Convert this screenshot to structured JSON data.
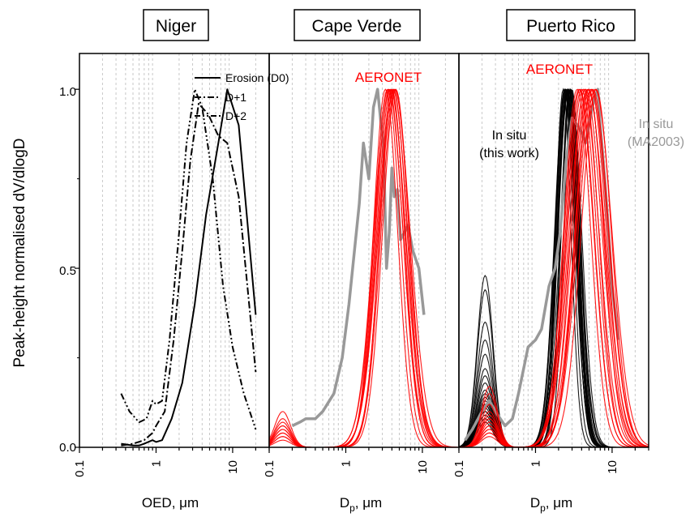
{
  "figure": {
    "ylabel": "Peak-height normalised dV/dlogD",
    "ytick_labels": [
      "0.0",
      "0.5",
      "1.0"
    ],
    "xtick_labels": [
      "0.1",
      "1",
      "10"
    ]
  },
  "colors": {
    "black": "#000000",
    "red": "#ff0000",
    "gray": "#999999",
    "grid": "#c8c8c8"
  },
  "chart_data": [
    {
      "type": "line",
      "title": "Niger",
      "xlabel": "OED, μm",
      "xscale": "log",
      "xlim": [
        0.1,
        30
      ],
      "ylim": [
        0,
        1.1
      ],
      "grid": "vertical dotted",
      "legend": {
        "placement": "top-left",
        "entries": [
          "Erosion (D0)",
          "D+1",
          "D+2"
        ]
      },
      "series": [
        {
          "name": "Erosion (D0)",
          "style": "solid",
          "color": "#000000",
          "x": [
            0.35,
            0.5,
            0.6,
            0.7,
            0.9,
            1.0,
            1.2,
            1.6,
            2.2,
            3.2,
            4.5,
            6.5,
            8.5,
            12.0,
            20.0
          ],
          "y": [
            0.01,
            0.005,
            0.005,
            0.01,
            0.02,
            0.015,
            0.02,
            0.08,
            0.18,
            0.4,
            0.65,
            0.85,
            1.0,
            0.9,
            0.37
          ]
        },
        {
          "name": "D+1",
          "style": "dashdot",
          "color": "#000000",
          "x": [
            0.35,
            0.5,
            0.7,
            0.9,
            1.0,
            1.3,
            1.7,
            2.2,
            2.8,
            3.6,
            4.8,
            6.5,
            8.5,
            12.0,
            20.0
          ],
          "y": [
            0.005,
            0.01,
            0.02,
            0.04,
            0.06,
            0.1,
            0.3,
            0.55,
            0.8,
            0.96,
            0.93,
            0.87,
            0.85,
            0.7,
            0.21
          ]
        },
        {
          "name": "D+2",
          "style": "dashdotdot",
          "color": "#000000",
          "x": [
            0.35,
            0.45,
            0.6,
            0.75,
            0.9,
            1.0,
            1.2,
            1.5,
            2.0,
            2.5,
            3.2,
            4.0,
            5.5,
            7.5,
            10.0,
            14.0,
            20.0
          ],
          "y": [
            0.15,
            0.1,
            0.07,
            0.08,
            0.13,
            0.12,
            0.13,
            0.3,
            0.6,
            0.85,
            1.0,
            0.95,
            0.75,
            0.45,
            0.28,
            0.15,
            0.05
          ]
        }
      ]
    },
    {
      "type": "line",
      "title": "Cape Verde",
      "xlabel": "Dp, μm",
      "xlabel_parts": {
        "main": "D",
        "sub": "p",
        "rest": ", μm"
      },
      "xscale": "log",
      "xlim": [
        0.1,
        30
      ],
      "ylim": [
        0,
        1.1
      ],
      "grid": "vertical dotted",
      "annotations": [
        {
          "text": "AERONET",
          "color": "#ff0000"
        }
      ],
      "series": [
        {
          "name": "In situ",
          "color": "#999999",
          "width": 3.5,
          "x": [
            0.2,
            0.25,
            0.3,
            0.4,
            0.5,
            0.7,
            0.9,
            1.1,
            1.3,
            1.5,
            1.7,
            2.0,
            2.3,
            2.6,
            2.9,
            3.1,
            3.4,
            3.7,
            4.0,
            4.3,
            4.7,
            5.2,
            5.8,
            6.5,
            7.5,
            9.0,
            10.5
          ],
          "y": [
            0.06,
            0.07,
            0.08,
            0.08,
            0.1,
            0.15,
            0.25,
            0.4,
            0.55,
            0.68,
            0.85,
            0.75,
            0.95,
            1.0,
            0.9,
            0.85,
            0.5,
            0.6,
            0.78,
            0.7,
            0.72,
            0.58,
            0.6,
            0.62,
            0.55,
            0.5,
            0.37
          ]
        },
        {
          "name": "AERONET",
          "color": "#ff0000",
          "family": "lognormal-ensemble",
          "peaks": [
            3.3,
            3.5,
            3.7,
            3.9,
            4.1,
            4.3,
            4.5,
            3.6,
            4.0,
            4.4,
            3.8,
            4.2
          ],
          "widths": [
            0.34,
            0.36,
            0.38,
            0.4,
            0.42,
            0.44,
            0.37,
            0.41,
            0.35,
            0.39,
            0.43,
            0.38
          ],
          "fine_amp": [
            0.02,
            0.03,
            0.04,
            0.05,
            0.06,
            0.07,
            0.03,
            0.05,
            0.08,
            0.04,
            0.06,
            0.1
          ],
          "fine_peak": 0.15
        }
      ]
    },
    {
      "type": "line",
      "title": "Puerto Rico",
      "xlabel": "Dp, μm",
      "xlabel_parts": {
        "main": "D",
        "sub": "p",
        "rest": ", μm"
      },
      "xscale": "log",
      "xlim": [
        0.1,
        30
      ],
      "ylim": [
        0,
        1.1
      ],
      "grid": "vertical dotted",
      "annotations": [
        {
          "text": "AERONET",
          "color": "#ff0000"
        },
        {
          "text": "In situ",
          "color": "#000000"
        },
        {
          "text": "(this work)",
          "color": "#000000"
        },
        {
          "text": "In situ",
          "color": "#999999"
        },
        {
          "text": "(MA2003)",
          "color": "#999999"
        }
      ],
      "series": [
        {
          "name": "In situ (this work)",
          "color": "#000000",
          "family": "lognormal-ensemble",
          "peaks": [
            2.3,
            2.4,
            2.5,
            2.6,
            2.7,
            2.8,
            2.9,
            3.0,
            2.5,
            2.7,
            2.6,
            2.8,
            2.4,
            2.9,
            2.55,
            2.65,
            2.75,
            2.45,
            2.85,
            2.6
          ],
          "widths": [
            0.22,
            0.24,
            0.26,
            0.28,
            0.3,
            0.25,
            0.27,
            0.23,
            0.29,
            0.31,
            0.26,
            0.24,
            0.28,
            0.3,
            0.25,
            0.27,
            0.23,
            0.29,
            0.26,
            0.28
          ],
          "fine_amp": [
            0.48,
            0.44,
            0.35,
            0.3,
            0.26,
            0.22,
            0.2,
            0.18,
            0.16,
            0.15,
            0.14,
            0.13,
            0.12,
            0.12,
            0.11,
            0.1,
            0.1,
            0.09,
            0.08,
            0.07
          ],
          "fine_peak": 0.22
        },
        {
          "name": "In situ (MA2003)",
          "color": "#999999",
          "width": 3.5,
          "x": [
            0.12,
            0.15,
            0.2,
            0.25,
            0.3,
            0.4,
            0.5,
            0.6,
            0.8,
            1.0,
            1.2,
            1.5,
            1.8,
            2.1,
            2.5,
            3.0,
            3.5,
            4.0,
            4.5,
            5.0,
            5.5,
            6.0,
            6.5,
            7.0,
            8.0,
            9.0,
            10.0,
            12.0
          ],
          "y": [
            0.02,
            0.05,
            0.1,
            0.13,
            0.1,
            0.06,
            0.08,
            0.15,
            0.28,
            0.3,
            0.33,
            0.45,
            0.5,
            0.6,
            0.8,
            0.92,
            0.9,
            0.88,
            0.85,
            0.9,
            0.95,
            0.98,
            1.0,
            0.9,
            0.75,
            0.6,
            0.45,
            0.3
          ]
        },
        {
          "name": "AERONET",
          "color": "#ff0000",
          "family": "lognormal-ensemble",
          "peaks": [
            3.5,
            3.8,
            4.0,
            4.2,
            4.5,
            4.8,
            5.0,
            5.3,
            5.6,
            6.0,
            3.7,
            4.4,
            4.9,
            5.4,
            6.2
          ],
          "widths": [
            0.38,
            0.4,
            0.42,
            0.44,
            0.46,
            0.48,
            0.4,
            0.43,
            0.45,
            0.47,
            0.41,
            0.39,
            0.44,
            0.46,
            0.42
          ],
          "fine_amp": [
            0.12,
            0.1,
            0.09,
            0.08,
            0.07,
            0.06,
            0.05,
            0.05,
            0.04,
            0.04,
            0.15,
            0.17,
            0.06,
            0.08,
            0.03
          ],
          "fine_peak": 0.25
        }
      ]
    }
  ]
}
